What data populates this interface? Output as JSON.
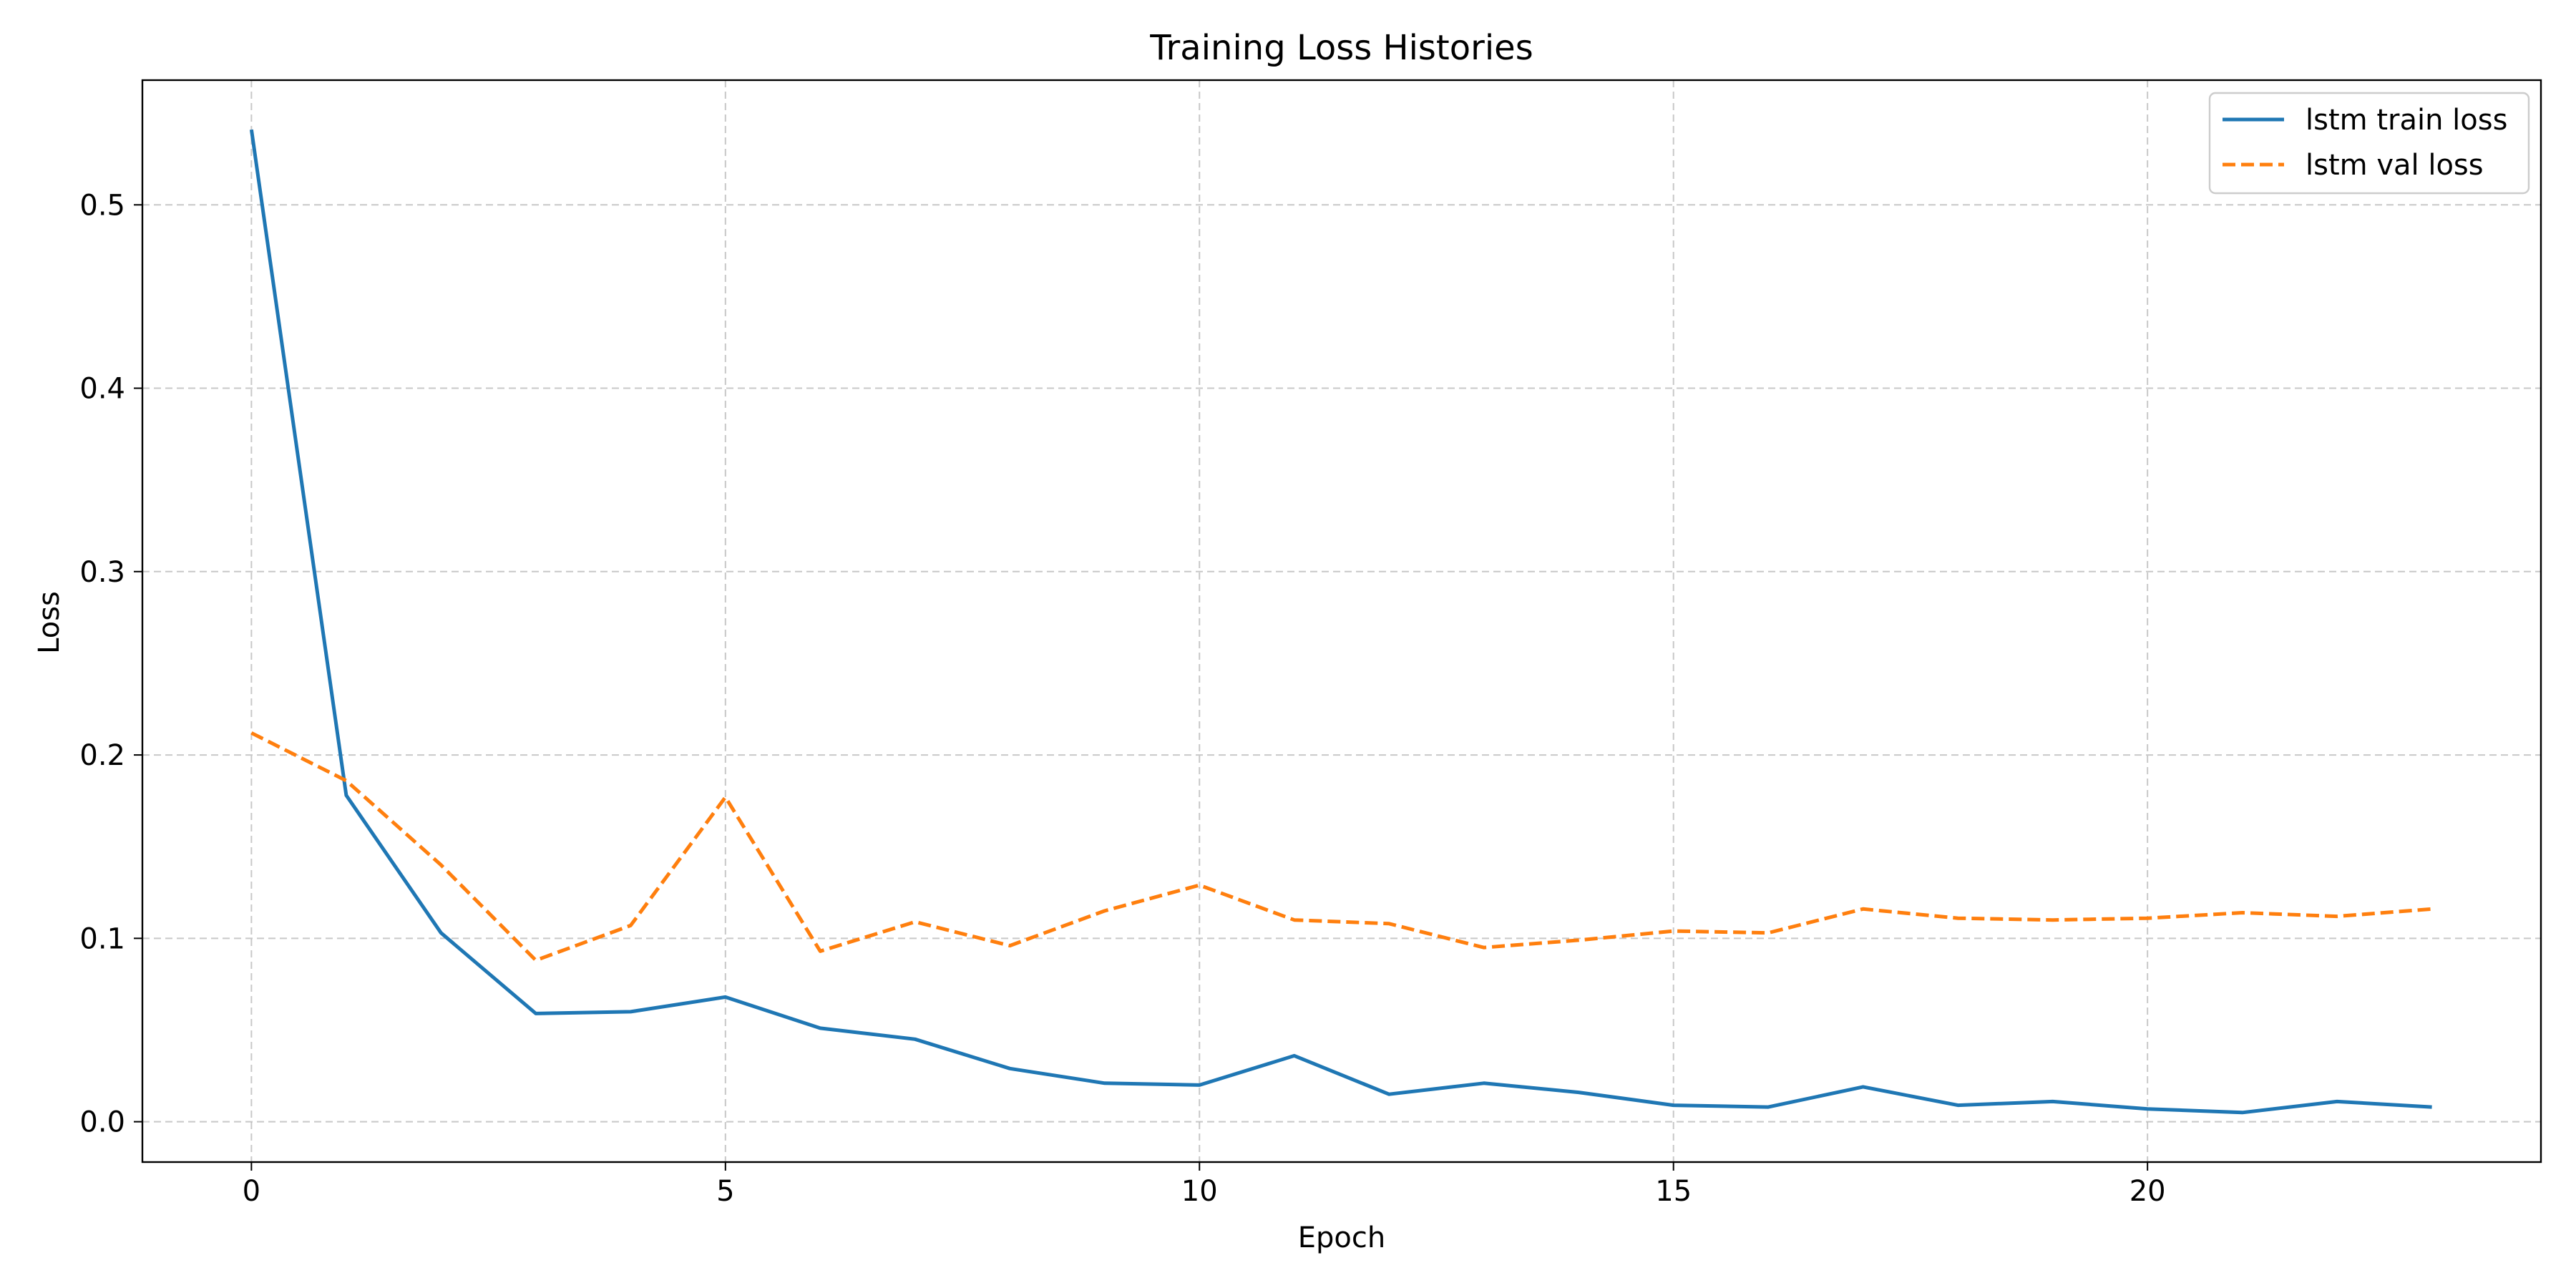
{
  "chart_data": {
    "type": "line",
    "title": "Training Loss Histories",
    "xlabel": "Epoch",
    "ylabel": "Loss",
    "xlim": [
      -1.15,
      24.15
    ],
    "ylim": [
      -0.022,
      0.568
    ],
    "xticks": [
      0,
      5,
      10,
      15,
      20
    ],
    "yticks": [
      0.0,
      0.1,
      0.2,
      0.3,
      0.4,
      0.5
    ],
    "ytick_labels": [
      "0.0",
      "0.1",
      "0.2",
      "0.3",
      "0.4",
      "0.5"
    ],
    "grid": true,
    "legend_position": "top-right",
    "x": [
      0,
      1,
      2,
      3,
      4,
      5,
      6,
      7,
      8,
      9,
      10,
      11,
      12,
      13,
      14,
      15,
      16,
      17,
      18,
      19,
      20,
      21,
      22,
      23
    ],
    "series": [
      {
        "name": "lstm train loss",
        "color": "#1f77b4",
        "style": "solid",
        "values": [
          0.541,
          0.178,
          0.103,
          0.059,
          0.06,
          0.068,
          0.051,
          0.045,
          0.029,
          0.021,
          0.02,
          0.036,
          0.015,
          0.021,
          0.016,
          0.009,
          0.008,
          0.019,
          0.009,
          0.011,
          0.007,
          0.005,
          0.011,
          0.008
        ]
      },
      {
        "name": "lstm val loss",
        "color": "#ff7f0e",
        "style": "dashed",
        "values": [
          0.212,
          0.186,
          0.14,
          0.088,
          0.107,
          0.177,
          0.093,
          0.109,
          0.096,
          0.115,
          0.129,
          0.11,
          0.108,
          0.095,
          0.099,
          0.104,
          0.103,
          0.116,
          0.111,
          0.11,
          0.111,
          0.114,
          0.112,
          0.116
        ]
      }
    ]
  }
}
